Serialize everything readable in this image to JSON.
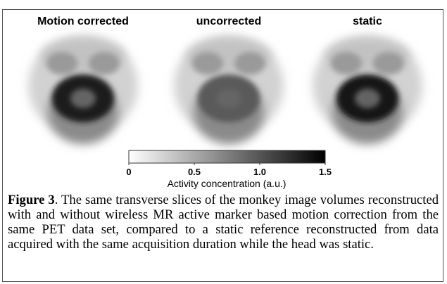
{
  "figure": {
    "panels": [
      {
        "title": "Motion corrected"
      },
      {
        "title": "uncorrected"
      },
      {
        "title": "static"
      }
    ],
    "colorbar": {
      "lim": [
        0,
        1.5
      ],
      "ticks": [
        0,
        0.5,
        {
          "value": 1,
          "label": "1.0"
        },
        1.5
      ],
      "label": "Activity concentration (a.u.)"
    },
    "caption": {
      "label": "Figure 3",
      "text": ". The same transverse slices of the monkey image volumes reconstructed with and without wireless MR active marker based motion correction from the same PET data set, compared to a static reference reconstructed from data acquired with the same acquisition duration while the head was static."
    }
  }
}
